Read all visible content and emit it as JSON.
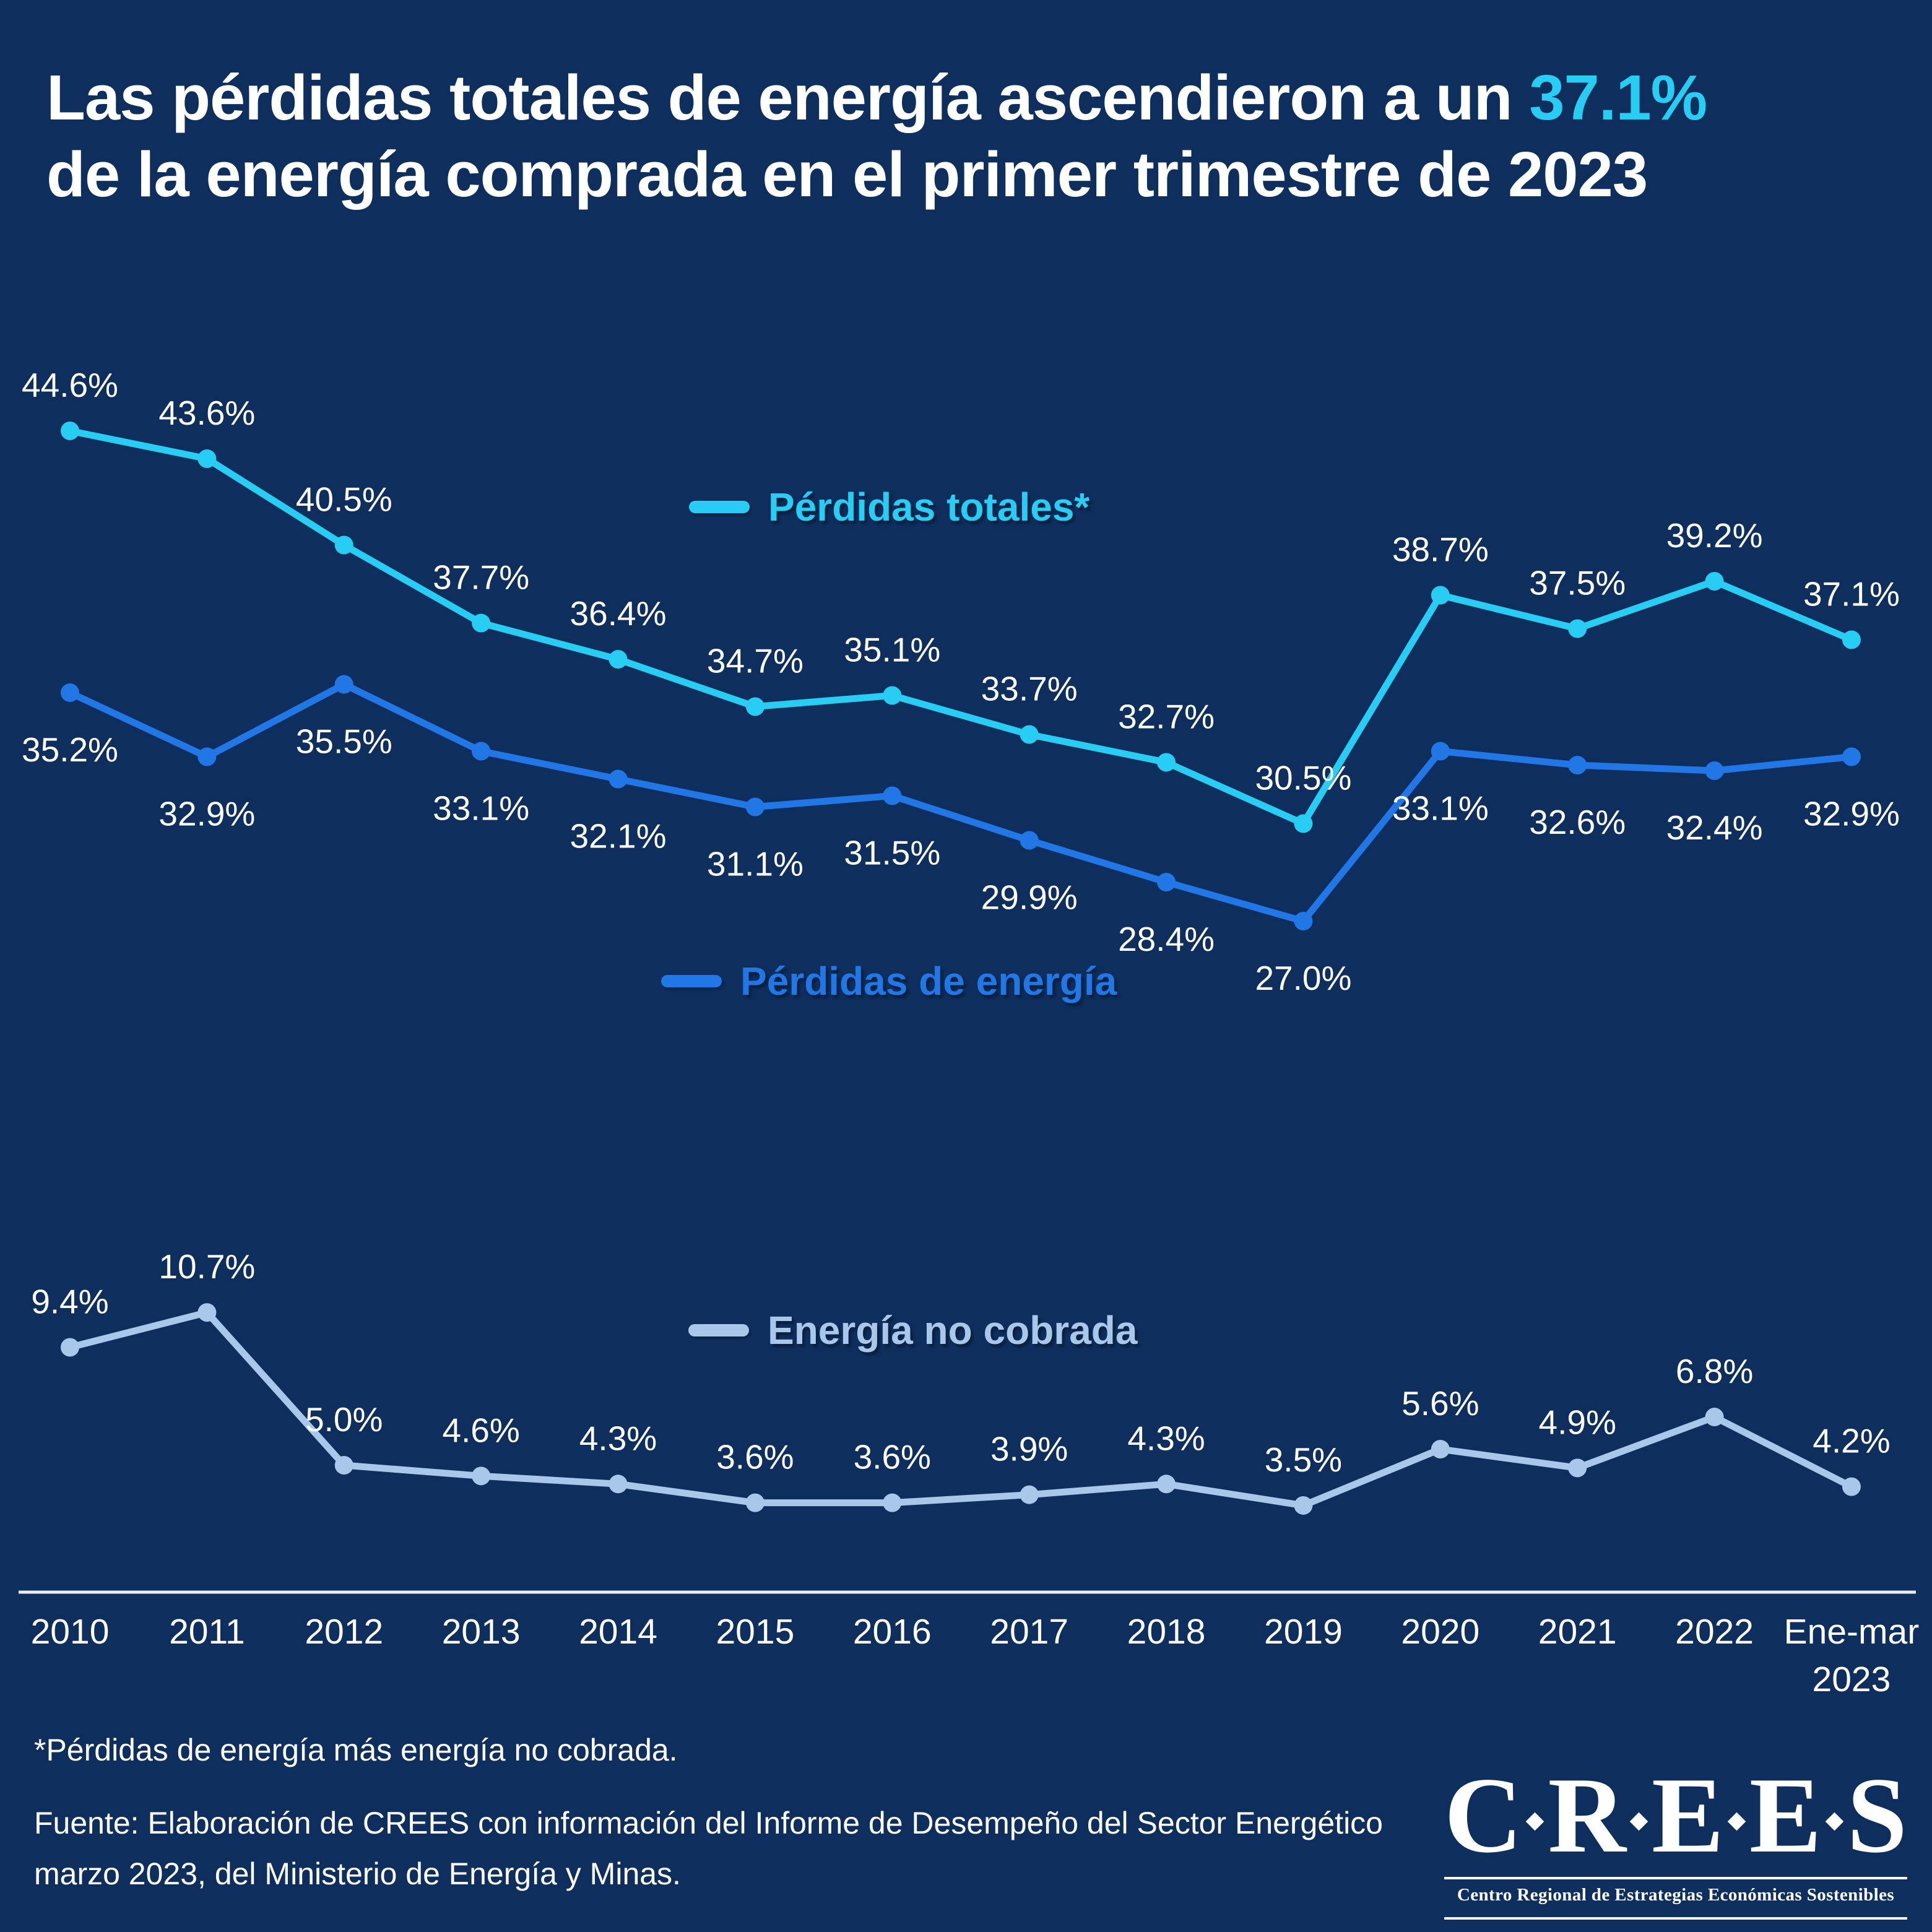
{
  "title": {
    "line1_prefix": "Las pérdidas totales de energía ascendieron a un ",
    "highlight": "37.1%",
    "line2": "de la energía comprada en el primer trimestre de 2023"
  },
  "chart_data": {
    "type": "line",
    "categories": [
      "2010",
      "2011",
      "2012",
      "2013",
      "2014",
      "2015",
      "2016",
      "2017",
      "2018",
      "2019",
      "2020",
      "2021",
      "2022",
      "Ene-mar 2023"
    ],
    "series": [
      {
        "name": "Pérdidas totales*",
        "color": "#27cdf2",
        "values": [
          44.6,
          43.6,
          40.5,
          37.7,
          36.4,
          34.7,
          35.1,
          33.7,
          32.7,
          30.5,
          38.7,
          37.5,
          39.2,
          37.1
        ]
      },
      {
        "name": "Pérdidas de energía",
        "color": "#2277e6",
        "values": [
          35.2,
          32.9,
          35.5,
          33.1,
          32.1,
          31.1,
          31.5,
          29.9,
          28.4,
          27.0,
          33.1,
          32.6,
          32.4,
          32.9
        ]
      },
      {
        "name": "Energía no cobrada",
        "color": "#a9c7e9",
        "values": [
          9.4,
          10.7,
          5.0,
          4.6,
          4.3,
          3.6,
          3.6,
          3.9,
          4.3,
          3.5,
          5.6,
          4.9,
          6.8,
          4.2
        ]
      }
    ],
    "value_suffix": "%",
    "grid": false,
    "legend_position": "inline",
    "x_axis_line": true
  },
  "footnote": "*Pérdidas de energía más energía no cobrada.",
  "source_line1": "Fuente: Elaboración de CREES con información del Informe de Desempeño del Sector Energético",
  "source_line2": "marzo 2023, del Ministerio de Energía y Minas.",
  "logo": {
    "acronym": "C·R·E·E·S",
    "tagline": "Centro Regional de Estrategias Económicas Sostenibles"
  },
  "colors": {
    "background": "#0e2f5e",
    "accent_cyan": "#27cdf2",
    "series_blue": "#2277e6",
    "series_lightblue": "#a9c7e9",
    "text_white": "#ffffff",
    "axis_line": "#e9eef6"
  }
}
